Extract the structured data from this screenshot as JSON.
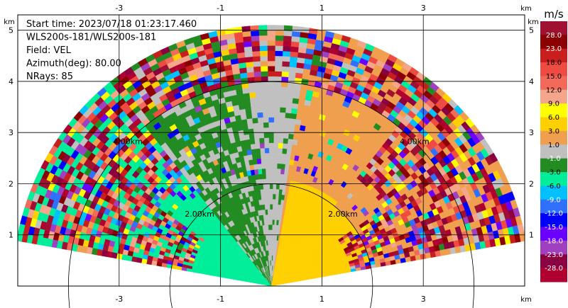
{
  "chart_data": {
    "type": "heatmap",
    "info_lines": [
      "Start time: 2023/07/18 01:23:17.460",
      "WLS200s-181/WLS200s-181",
      "Field: VEL",
      "Azimuth(deg): 80.00",
      "NRays: 85"
    ],
    "x_axis": {
      "unit": "km",
      "range": [
        -5,
        5
      ],
      "ticks": [
        -3,
        -1,
        1,
        3
      ],
      "tick_labels": [
        "-3",
        "-1",
        "1",
        "3"
      ]
    },
    "y_axis": {
      "unit": "km",
      "range": [
        0,
        5.3
      ],
      "ticks": [
        1,
        2,
        3,
        4,
        5
      ],
      "tick_labels": [
        "1",
        "2",
        "3",
        "4",
        "5"
      ]
    },
    "grid": true,
    "scan": {
      "max_range_km": 5.05,
      "azimuth_span_deg": [
        10,
        170
      ],
      "range_rings": [
        {
          "radius_km": 2.0,
          "labels": [
            "2.00km",
            "2.00km"
          ]
        },
        {
          "radius_km": 4.0,
          "labels": [
            "4.00km",
            "4.00km"
          ]
        }
      ]
    },
    "colorbar": {
      "title": "m/s",
      "levels": [
        "28.0",
        "23.0",
        "18.0",
        "15.0",
        "12.0",
        "9.0",
        "6.0",
        "3.0",
        "1.0",
        "-1.0",
        "-3.0",
        "-6.0",
        "-9.0",
        "-12.0",
        "-15.0",
        "-18.0",
        "-23.0",
        "-28.0"
      ],
      "colors": [
        "#a01030",
        "#8b0000",
        "#c81e1e",
        "#ee4b43",
        "#f26b5a",
        "#f4a58a",
        "#ffff00",
        "#ffd000",
        "#ef9f4d",
        "#c0c0c0",
        "#228b22",
        "#00ee9a",
        "#00c0ff",
        "#3070ff",
        "#0000ff",
        "#6a00ff",
        "#a040c0",
        "#8b0040",
        "#b00030"
      ]
    }
  }
}
